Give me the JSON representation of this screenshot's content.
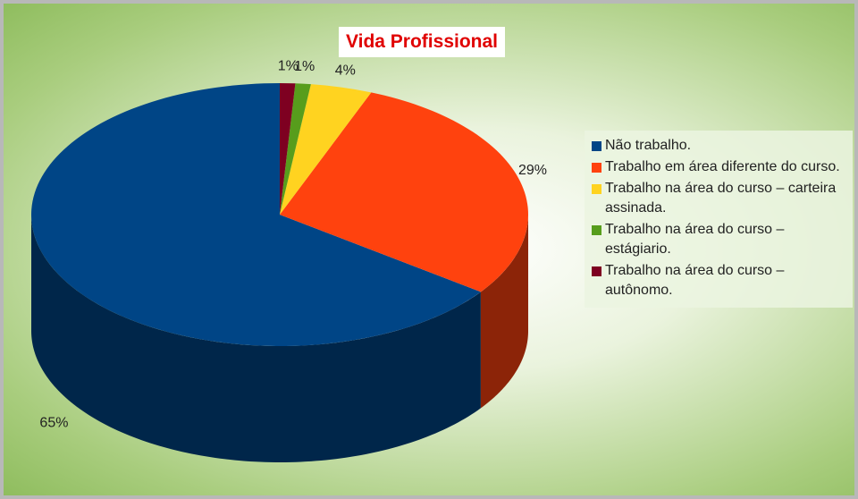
{
  "chart_data": {
    "type": "pie3d",
    "title": "Vida Profissional",
    "categories": [
      "Não trabalho.",
      "Trabalho em área diferente do curso.",
      "Trabalho na área do curso – carteira assinada.",
      "Trabalho na área do curso – estágiario.",
      "Trabalho na área do curso – autônomo."
    ],
    "values": [
      65,
      29,
      4,
      1,
      1
    ],
    "value_labels": [
      "65%",
      "29%",
      "4%",
      "1%",
      "1%"
    ],
    "colors": [
      "#004586",
      "#ff420e",
      "#ffd320",
      "#579d1c",
      "#7e0021"
    ],
    "legend": "right"
  }
}
